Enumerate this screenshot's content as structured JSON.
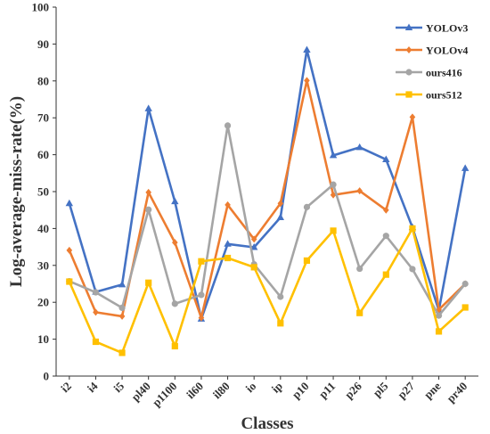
{
  "chart_data": {
    "type": "line",
    "title": "",
    "xlabel": "Classes",
    "ylabel": "Log-average-miss-rate(%)",
    "ylim": [
      0,
      100
    ],
    "yticks": [
      0,
      10,
      20,
      30,
      40,
      50,
      60,
      70,
      80,
      90,
      100
    ],
    "grid": false,
    "legend_position": "top-right",
    "categories": [
      "i2",
      "i4",
      "i5",
      "pl40",
      "p1100",
      "il60",
      "il80",
      "io",
      "ip",
      "p10",
      "p11",
      "p26",
      "pl5",
      "p27",
      "pne",
      "pr40"
    ],
    "series": [
      {
        "name": "YOLOv3",
        "color": "#4472C4",
        "marker": "triangle",
        "values": [
          46.8,
          22.8,
          24.8,
          72.5,
          47.3,
          15.5,
          35.8,
          34.9,
          43.0,
          88.4,
          59.8,
          62.0,
          58.7,
          40.3,
          17.8,
          56.3
        ]
      },
      {
        "name": "YOLOv4",
        "color": "#ED7D31",
        "marker": "diamond",
        "values": [
          34.1,
          17.3,
          16.2,
          49.8,
          36.2,
          15.8,
          46.4,
          37.1,
          46.8,
          80.1,
          49.1,
          50.2,
          45.0,
          70.2,
          18.0,
          25.0
        ]
      },
      {
        "name": "ours416",
        "color": "#A5A5A5",
        "marker": "circle",
        "values": [
          25.7,
          22.7,
          18.5,
          45.1,
          19.6,
          22.0,
          67.9,
          30.3,
          21.5,
          45.8,
          51.9,
          29.1,
          38.0,
          29.0,
          16.4,
          25.0
        ]
      },
      {
        "name": "ours512",
        "color": "#FFC000",
        "marker": "square",
        "values": [
          25.6,
          9.3,
          6.3,
          25.3,
          8.1,
          31.1,
          32.0,
          29.5,
          14.3,
          31.3,
          39.4,
          17.1,
          27.5,
          40.0,
          12.1,
          18.6
        ]
      }
    ]
  }
}
